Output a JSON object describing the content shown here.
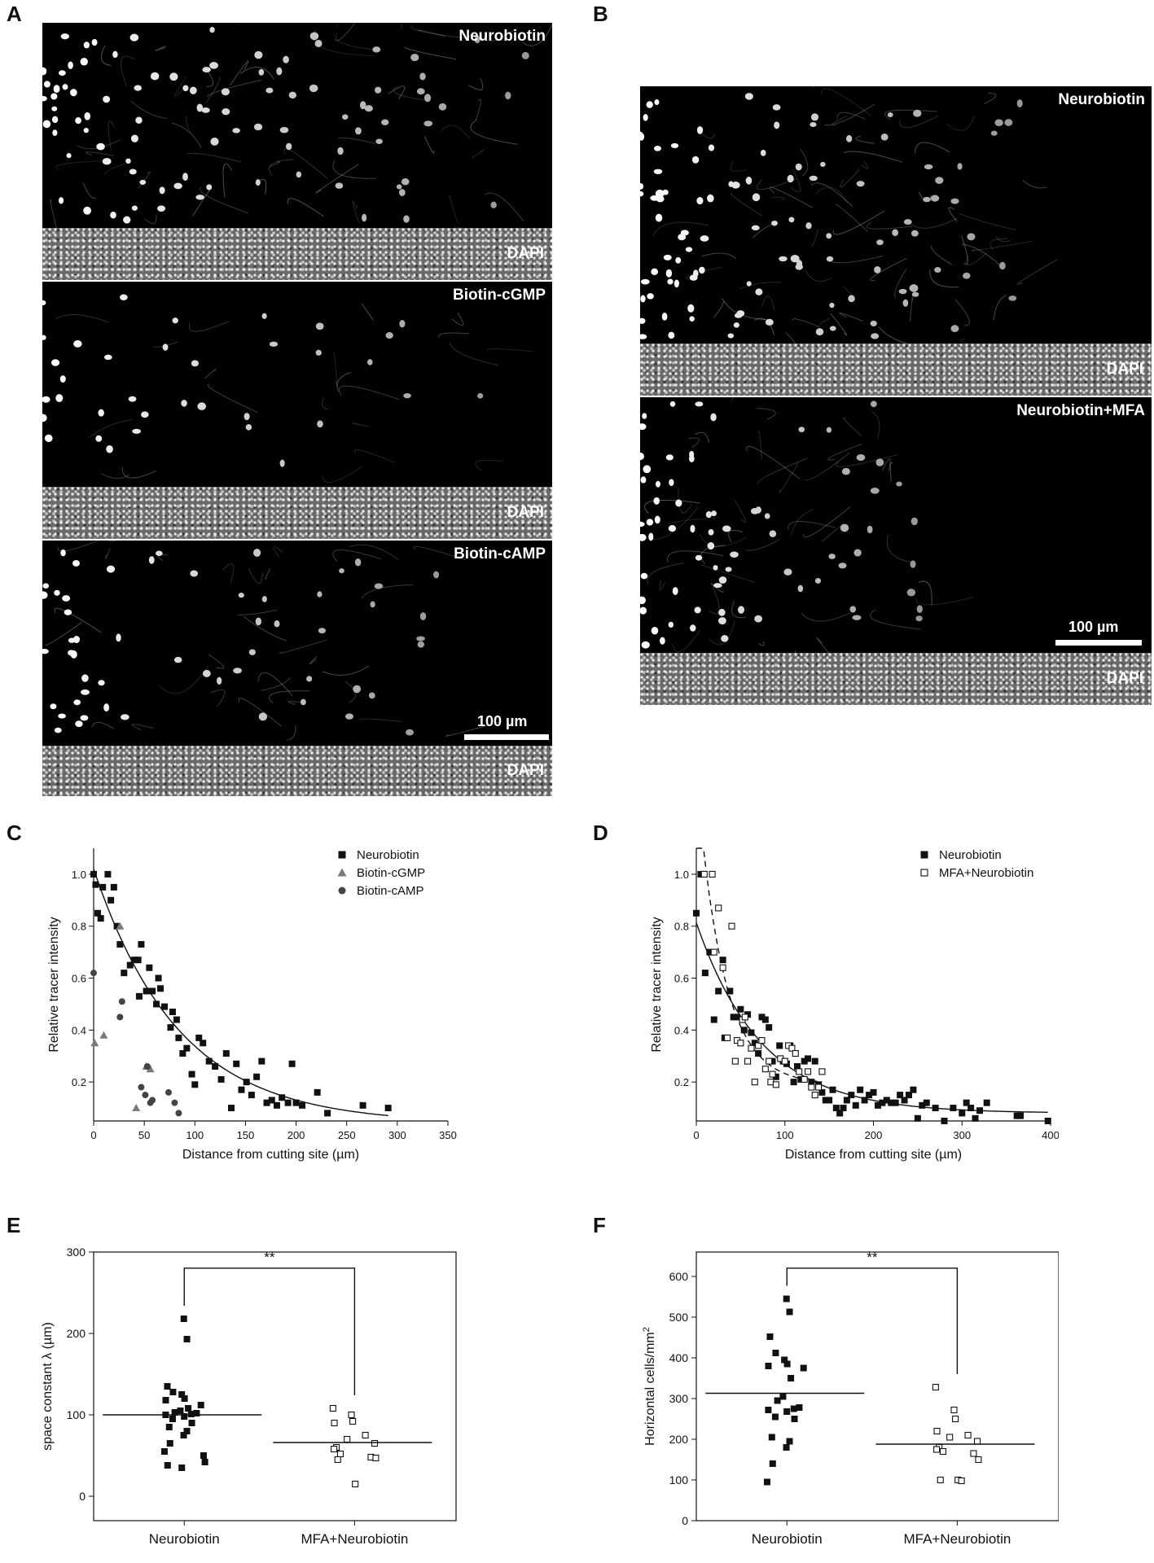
{
  "panels": {
    "A": "A",
    "B": "B",
    "C": "C",
    "D": "D",
    "E": "E",
    "F": "F"
  },
  "micrographs": {
    "a_top_label": "Neurobiotin",
    "a_mid_label": "Biotin-cGMP",
    "a_bot_label": "Biotin-cAMP",
    "b_top_label": "Neurobiotin",
    "b_bot_label": "Neurobiotin+MFA",
    "dapi_label": "DAPI",
    "scale_label": "100 µm"
  },
  "chart_data": [
    {
      "id": "C",
      "type": "scatter",
      "xlabel": "Distance from cutting site (µm)",
      "ylabel": "Relative tracer intensity",
      "xlim": [
        0,
        350
      ],
      "ylim": [
        0.05,
        1.1
      ],
      "xticks": [
        0,
        50,
        100,
        150,
        200,
        250,
        300,
        350
      ],
      "yticks": [
        0.2,
        0.4,
        0.6,
        0.8,
        1.0
      ],
      "legend_position": "top-right",
      "series": [
        {
          "name": "Neurobiotin",
          "marker": "square",
          "color": "#111111",
          "points": [
            [
              0,
              1.0
            ],
            [
              2,
              0.96
            ],
            [
              4,
              0.85
            ],
            [
              7,
              0.83
            ],
            [
              9,
              0.95
            ],
            [
              14,
              1.0
            ],
            [
              17,
              0.9
            ],
            [
              20,
              0.95
            ],
            [
              23,
              0.8
            ],
            [
              26,
              0.73
            ],
            [
              30,
              0.62
            ],
            [
              36,
              0.65
            ],
            [
              40,
              0.67
            ],
            [
              44,
              0.67
            ],
            [
              45,
              0.53
            ],
            [
              47,
              0.73
            ],
            [
              52,
              0.55
            ],
            [
              55,
              0.64
            ],
            [
              58,
              0.55
            ],
            [
              62,
              0.5
            ],
            [
              64,
              0.6
            ],
            [
              66,
              0.56
            ],
            [
              70,
              0.49
            ],
            [
              76,
              0.41
            ],
            [
              78,
              0.47
            ],
            [
              82,
              0.44
            ],
            [
              84,
              0.37
            ],
            [
              88,
              0.31
            ],
            [
              92,
              0.33
            ],
            [
              97,
              0.23
            ],
            [
              100,
              0.19
            ],
            [
              104,
              0.37
            ],
            [
              108,
              0.35
            ],
            [
              114,
              0.28
            ],
            [
              120,
              0.26
            ],
            [
              126,
              0.21
            ],
            [
              131,
              0.31
            ],
            [
              136,
              0.1
            ],
            [
              141,
              0.27
            ],
            [
              146,
              0.17
            ],
            [
              151,
              0.2
            ],
            [
              156,
              0.15
            ],
            [
              161,
              0.22
            ],
            [
              166,
              0.28
            ],
            [
              171,
              0.12
            ],
            [
              176,
              0.13
            ],
            [
              181,
              0.11
            ],
            [
              186,
              0.14
            ],
            [
              192,
              0.12
            ],
            [
              196,
              0.27
            ],
            [
              200,
              0.12
            ],
            [
              206,
              0.11
            ],
            [
              221,
              0.16
            ],
            [
              231,
              0.08
            ],
            [
              266,
              0.11
            ],
            [
              291,
              0.1
            ]
          ]
        },
        {
          "name": "Biotin-cGMP",
          "marker": "triangle",
          "color": "#7a7a7a",
          "points": [
            [
              1,
              0.35
            ],
            [
              10,
              0.38
            ],
            [
              26,
              0.8
            ],
            [
              42,
              0.1
            ],
            [
              52,
              0.26
            ],
            [
              56,
              0.25
            ]
          ]
        },
        {
          "name": "Biotin-cAMP",
          "marker": "circle",
          "color": "#444444",
          "points": [
            [
              0,
              0.62
            ],
            [
              26,
              0.45
            ],
            [
              28,
              0.51
            ],
            [
              47,
              0.18
            ],
            [
              51,
              0.15
            ],
            [
              53,
              0.26
            ],
            [
              56,
              0.12
            ],
            [
              58,
              0.13
            ],
            [
              74,
              0.16
            ],
            [
              80,
              0.12
            ],
            [
              84,
              0.08
            ]
          ]
        }
      ],
      "fit": {
        "type": "exponential",
        "style": "solid",
        "series": "Neurobiotin"
      }
    },
    {
      "id": "D",
      "type": "scatter",
      "xlabel": "Distance from cutting site (µm)",
      "ylabel": "Relative tracer intensity",
      "xlim": [
        0,
        400
      ],
      "ylim": [
        0.05,
        1.1
      ],
      "xticks": [
        0,
        100,
        200,
        300,
        400
      ],
      "yticks": [
        0.2,
        0.4,
        0.6,
        0.8,
        1.0
      ],
      "legend_position": "top-right",
      "series": [
        {
          "name": "Neurobiotin",
          "marker": "square",
          "color": "#111111",
          "points": [
            [
              0,
              0.85
            ],
            [
              5,
              1.0
            ],
            [
              10,
              0.62
            ],
            [
              15,
              0.7
            ],
            [
              20,
              0.44
            ],
            [
              25,
              0.55
            ],
            [
              30,
              0.67
            ],
            [
              32,
              0.37
            ],
            [
              38,
              0.55
            ],
            [
              42,
              0.45
            ],
            [
              46,
              0.45
            ],
            [
              50,
              0.48
            ],
            [
              54,
              0.4
            ],
            [
              58,
              0.46
            ],
            [
              62,
              0.39
            ],
            [
              66,
              0.35
            ],
            [
              70,
              0.31
            ],
            [
              74,
              0.45
            ],
            [
              78,
              0.44
            ],
            [
              82,
              0.41
            ],
            [
              86,
              0.28
            ],
            [
              90,
              0.22
            ],
            [
              94,
              0.34
            ],
            [
              98,
              0.28
            ],
            [
              102,
              0.27
            ],
            [
              106,
              0.34
            ],
            [
              110,
              0.2
            ],
            [
              114,
              0.26
            ],
            [
              118,
              0.21
            ],
            [
              122,
              0.28
            ],
            [
              126,
              0.29
            ],
            [
              130,
              0.2
            ],
            [
              134,
              0.28
            ],
            [
              138,
              0.19
            ],
            [
              142,
              0.16
            ],
            [
              146,
              0.13
            ],
            [
              150,
              0.13
            ],
            [
              154,
              0.17
            ],
            [
              158,
              0.1
            ],
            [
              162,
              0.08
            ],
            [
              166,
              0.1
            ],
            [
              170,
              0.13
            ],
            [
              175,
              0.15
            ],
            [
              180,
              0.11
            ],
            [
              185,
              0.17
            ],
            [
              190,
              0.13
            ],
            [
              195,
              0.15
            ],
            [
              200,
              0.16
            ],
            [
              205,
              0.11
            ],
            [
              210,
              0.12
            ],
            [
              215,
              0.13
            ],
            [
              220,
              0.12
            ],
            [
              225,
              0.12
            ],
            [
              230,
              0.15
            ],
            [
              235,
              0.13
            ],
            [
              240,
              0.15
            ],
            [
              245,
              0.17
            ],
            [
              250,
              0.06
            ],
            [
              255,
              0.11
            ],
            [
              260,
              0.12
            ],
            [
              270,
              0.1
            ],
            [
              280,
              0.05
            ],
            [
              290,
              0.1
            ],
            [
              300,
              0.08
            ],
            [
              305,
              0.12
            ],
            [
              310,
              0.1
            ],
            [
              315,
              0.06
            ],
            [
              320,
              0.09
            ],
            [
              328,
              0.12
            ],
            [
              362,
              0.07
            ],
            [
              366,
              0.07
            ],
            [
              397,
              0.05
            ]
          ]
        },
        {
          "name": "MFA+Neurobiotin",
          "marker": "open-square",
          "color": "#111111",
          "points": [
            [
              9,
              1.0
            ],
            [
              18,
              1.0
            ],
            [
              20,
              0.7
            ],
            [
              25,
              0.87
            ],
            [
              30,
              0.64
            ],
            [
              35,
              0.37
            ],
            [
              40,
              0.8
            ],
            [
              44,
              0.28
            ],
            [
              46,
              0.36
            ],
            [
              50,
              0.35
            ],
            [
              52,
              0.44
            ],
            [
              55,
              0.45
            ],
            [
              58,
              0.28
            ],
            [
              62,
              0.33
            ],
            [
              66,
              0.2
            ],
            [
              70,
              0.34
            ],
            [
              74,
              0.36
            ],
            [
              78,
              0.25
            ],
            [
              82,
              0.28
            ],
            [
              84,
              0.2
            ],
            [
              86,
              0.23
            ],
            [
              90,
              0.19
            ],
            [
              95,
              0.29
            ],
            [
              100,
              0.28
            ],
            [
              104,
              0.34
            ],
            [
              108,
              0.33
            ],
            [
              112,
              0.31
            ],
            [
              116,
              0.24
            ],
            [
              122,
              0.21
            ],
            [
              126,
              0.24
            ],
            [
              130,
              0.18
            ],
            [
              134,
              0.15
            ],
            [
              138,
              0.18
            ],
            [
              142,
              0.24
            ]
          ]
        }
      ],
      "fits": [
        {
          "series": "Neurobiotin",
          "type": "exponential",
          "style": "solid"
        },
        {
          "series": "MFA+Neurobiotin",
          "type": "exponential",
          "style": "dashed"
        }
      ]
    },
    {
      "id": "E",
      "type": "scatter",
      "ylabel": "space constant λ (µm)",
      "categories": [
        "Neurobiotin",
        "MFA+Neurobiotin"
      ],
      "ylim": [
        -30,
        300
      ],
      "yticks": [
        0,
        100,
        200,
        300
      ],
      "significance": "**",
      "series": [
        {
          "name": "Neurobiotin",
          "marker": "square",
          "color": "#111111",
          "mean": 100,
          "values": [
            218,
            193,
            135,
            128,
            125,
            120,
            118,
            112,
            108,
            105,
            103,
            102,
            101,
            100,
            98,
            95,
            90,
            85,
            80,
            75,
            65,
            55,
            50,
            42,
            38,
            35
          ]
        },
        {
          "name": "MFA+Neurobiotin",
          "marker": "open-square",
          "color": "#111111",
          "mean": 66,
          "values": [
            108,
            100,
            92,
            90,
            75,
            70,
            65,
            60,
            58,
            52,
            48,
            47,
            45,
            15
          ]
        }
      ]
    },
    {
      "id": "F",
      "type": "scatter",
      "ylabel": "Horizontal cells/mm",
      "ylabel_sup": "2",
      "categories": [
        "Neurobiotin",
        "MFA+Neurobiotin"
      ],
      "ylim": [
        0,
        660
      ],
      "yticks": [
        0,
        100,
        200,
        300,
        400,
        500,
        600
      ],
      "significance": "**",
      "series": [
        {
          "name": "Neurobiotin",
          "marker": "square",
          "color": "#111111",
          "mean": 313,
          "values": [
            545,
            513,
            452,
            412,
            395,
            385,
            380,
            375,
            350,
            305,
            295,
            278,
            275,
            272,
            268,
            255,
            250,
            205,
            195,
            180,
            140,
            95
          ]
        },
        {
          "name": "MFA+Neurobiotin",
          "marker": "open-square",
          "color": "#111111",
          "mean": 188,
          "values": [
            328,
            272,
            250,
            220,
            210,
            205,
            195,
            180,
            175,
            170,
            165,
            150,
            100,
            100,
            98
          ]
        }
      ]
    }
  ]
}
